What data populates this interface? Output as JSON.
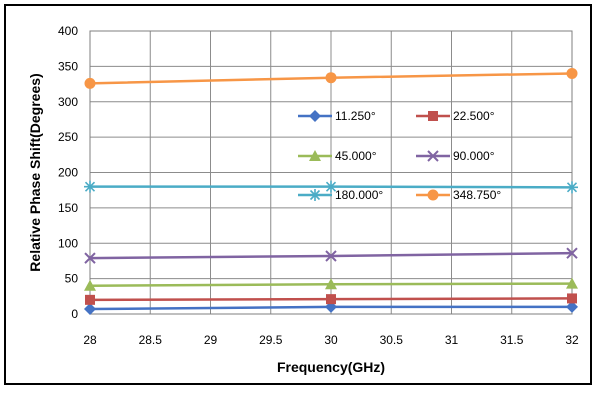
{
  "chart_data": {
    "type": "line",
    "xlabel": "Frequency(GHz)",
    "ylabel": "Relative Phase Shift(Degrees)",
    "xlim": [
      28,
      32
    ],
    "ylim": [
      0,
      400
    ],
    "xticks": [
      28,
      28.5,
      29,
      29.5,
      30,
      30.5,
      31,
      31.5,
      32
    ],
    "yticks": [
      0,
      50,
      100,
      150,
      200,
      250,
      300,
      350,
      400
    ],
    "grid": true,
    "legend_position": "center-right",
    "series": [
      {
        "name": "11.250°",
        "color": "#4472c4",
        "marker": "diamond",
        "x": [
          28,
          30,
          32
        ],
        "y": [
          7,
          10,
          10
        ]
      },
      {
        "name": "22.500°",
        "color": "#c0504d",
        "marker": "square",
        "x": [
          28,
          30,
          32
        ],
        "y": [
          20,
          21,
          22
        ]
      },
      {
        "name": "45.000°",
        "color": "#9bbb59",
        "marker": "triangle",
        "x": [
          28,
          30,
          32
        ],
        "y": [
          40,
          42,
          43
        ]
      },
      {
        "name": "90.000°",
        "color": "#8064a2",
        "marker": "x",
        "x": [
          28,
          30,
          32
        ],
        "y": [
          79,
          82,
          86
        ]
      },
      {
        "name": "180.000°",
        "color": "#4bacc6",
        "marker": "star",
        "x": [
          28,
          30,
          32
        ],
        "y": [
          180,
          180,
          179
        ]
      },
      {
        "name": "348.750°",
        "color": "#f79646",
        "marker": "circle",
        "x": [
          28,
          30,
          32
        ],
        "y": [
          326,
          334,
          340
        ]
      }
    ]
  }
}
